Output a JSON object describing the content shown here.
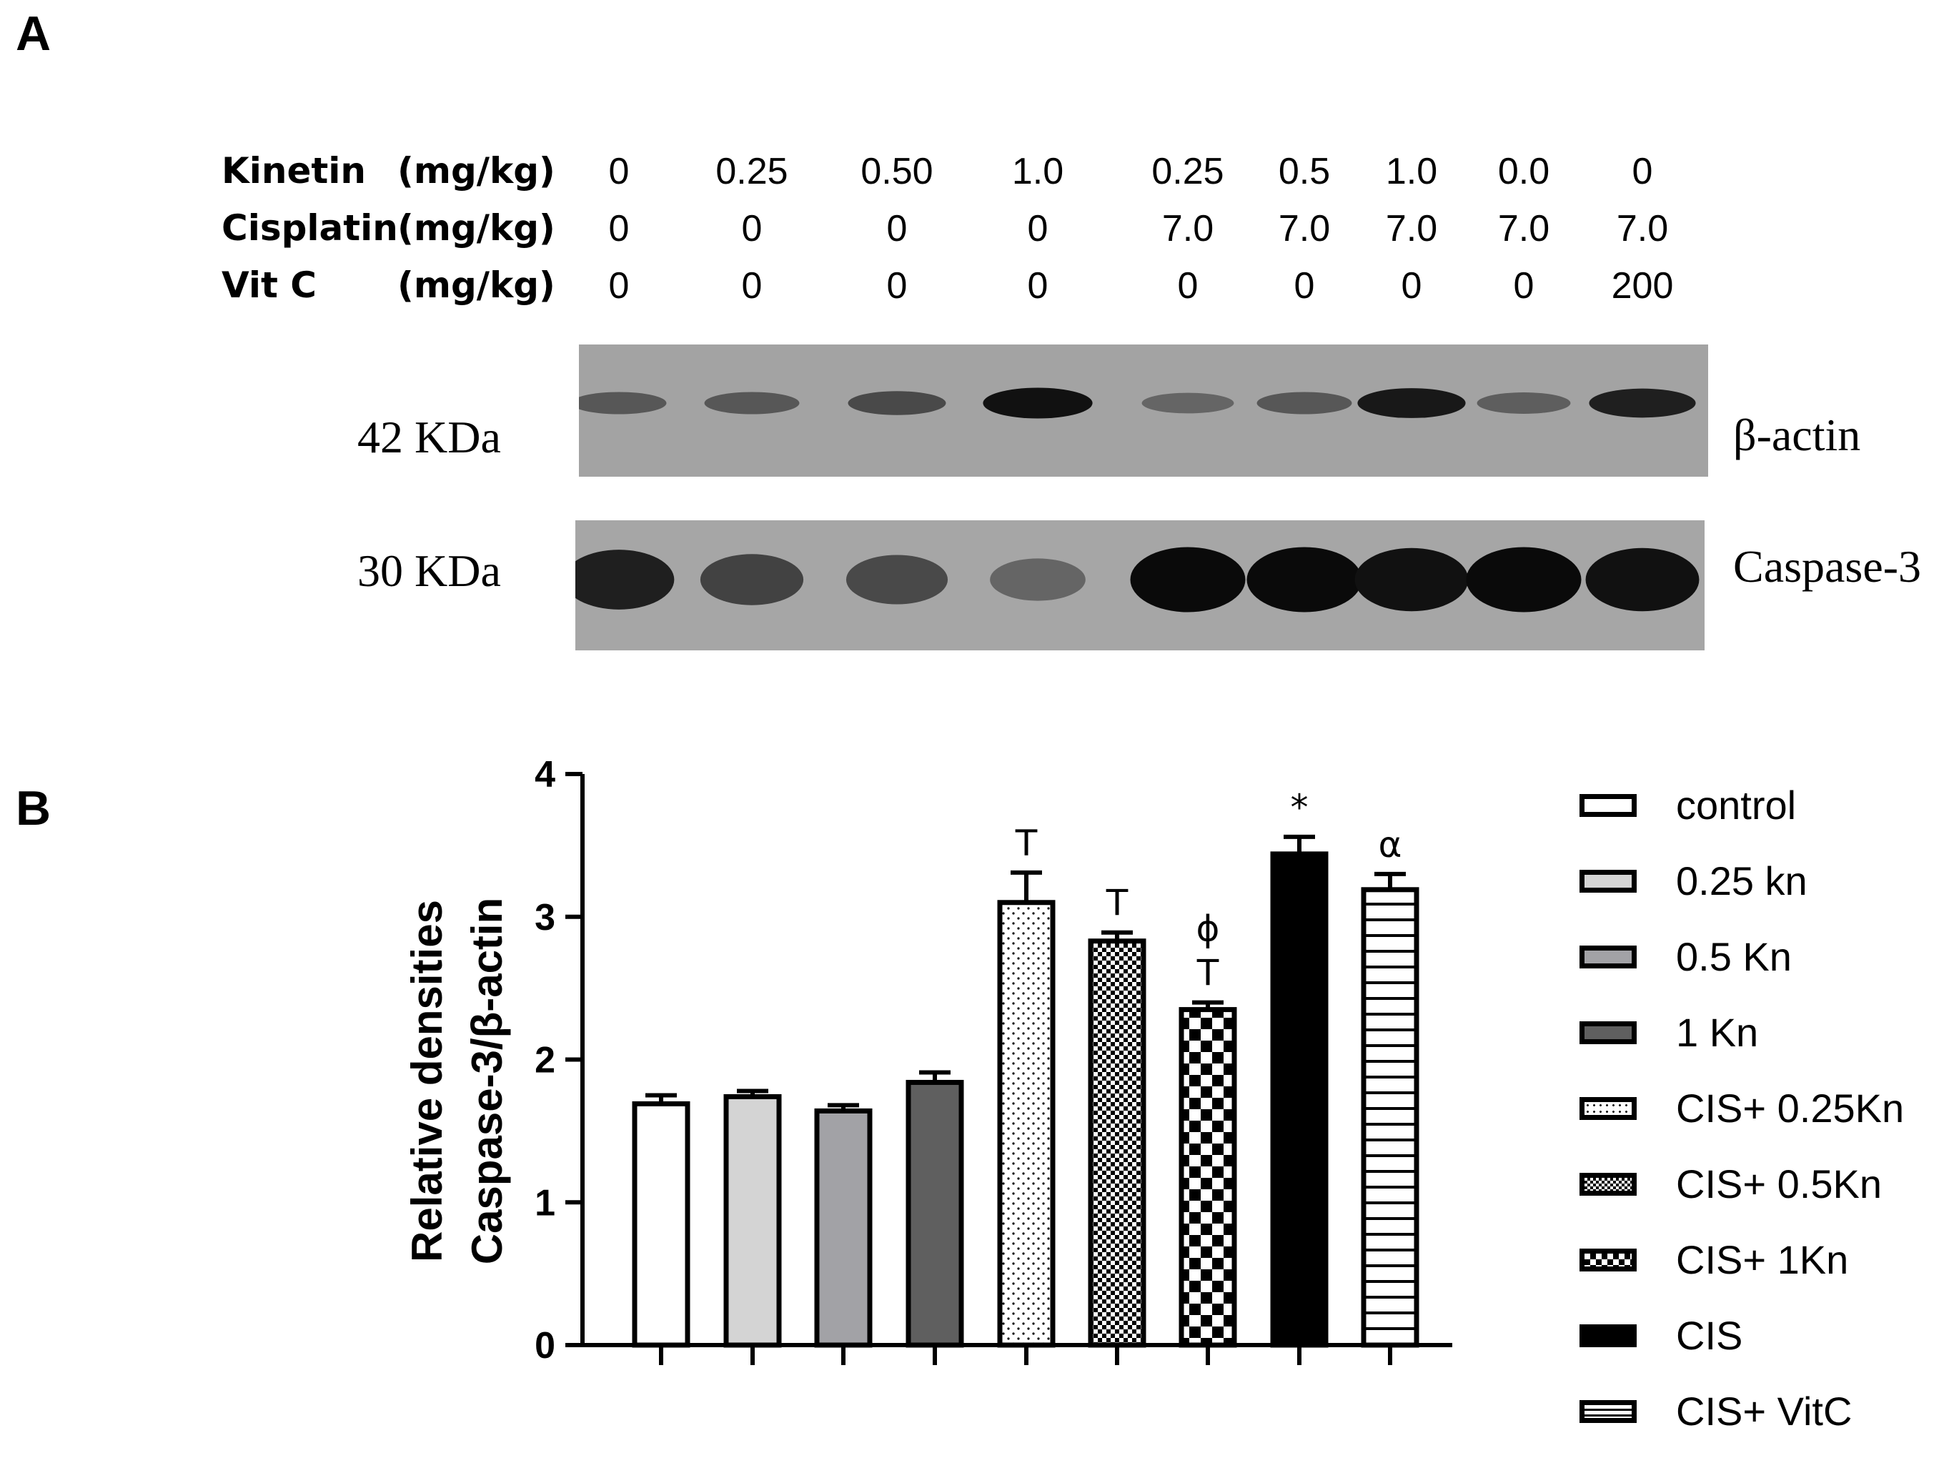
{
  "panel_a": {
    "letter": "A",
    "conditions": [
      {
        "label": "Kinetin",
        "unit": "(mg/kg)",
        "values": [
          "0",
          "0.25",
          "0.50",
          "1.0",
          "0.25",
          "0.5",
          "1.0",
          "0.0",
          "0"
        ]
      },
      {
        "label": "Cisplatin",
        "unit": "(mg/kg)",
        "values": [
          "0",
          "0",
          "0",
          "0",
          "7.0",
          "7.0",
          "7.0",
          "7.0",
          "7.0"
        ]
      },
      {
        "label": "Vit C",
        "unit": "(mg/kg)",
        "values": [
          "0",
          "0",
          "0",
          "0",
          "0",
          "0",
          "0",
          "0",
          "200"
        ]
      }
    ],
    "blots": [
      {
        "mw": "42 KDa",
        "protein": "β-actin",
        "band_intensity": [
          0.45,
          0.45,
          0.55,
          0.95,
          0.35,
          0.45,
          0.9,
          0.4,
          0.85
        ]
      },
      {
        "mw": "30 KDa",
        "protein": "Caspase-3",
        "band_intensity": [
          0.85,
          0.6,
          0.55,
          0.35,
          1.0,
          1.0,
          0.95,
          1.0,
          0.95
        ]
      }
    ]
  },
  "panel_b": {
    "letter": "B"
  },
  "chart_data": {
    "type": "bar",
    "title": "",
    "xlabel": "",
    "ylabel": "Relative densities Caspase-3/β-actin",
    "ylabel_lines": [
      "Relative densities",
      "Caspase-3/β-actin"
    ],
    "ylim": [
      0,
      4
    ],
    "yticks": [
      "0",
      "1",
      "2",
      "3",
      "4"
    ],
    "categories": [
      "control",
      "0.25 kn",
      "0.5 Kn",
      "1 Kn",
      "CIS+ 0.25Kn",
      "CIS+ 0.5Kn",
      "CIS+ 1Kn",
      "CIS",
      "CIS+ VitC"
    ],
    "values": [
      1.69,
      1.74,
      1.64,
      1.84,
      3.1,
      2.83,
      2.35,
      3.44,
      3.19
    ],
    "errors": [
      0.06,
      0.04,
      0.04,
      0.07,
      0.21,
      0.06,
      0.05,
      0.12,
      0.11
    ],
    "fills": [
      "white",
      "lightgray",
      "gray",
      "darkgray",
      "dots",
      "fine-check",
      "checker",
      "black",
      "hstripes"
    ],
    "significance": [
      [],
      [],
      [],
      [],
      [
        "T"
      ],
      [
        "T"
      ],
      [
        "T",
        "ϕ"
      ],
      [
        "*"
      ],
      [
        "α"
      ]
    ],
    "legend_position": "right",
    "grid": false
  }
}
